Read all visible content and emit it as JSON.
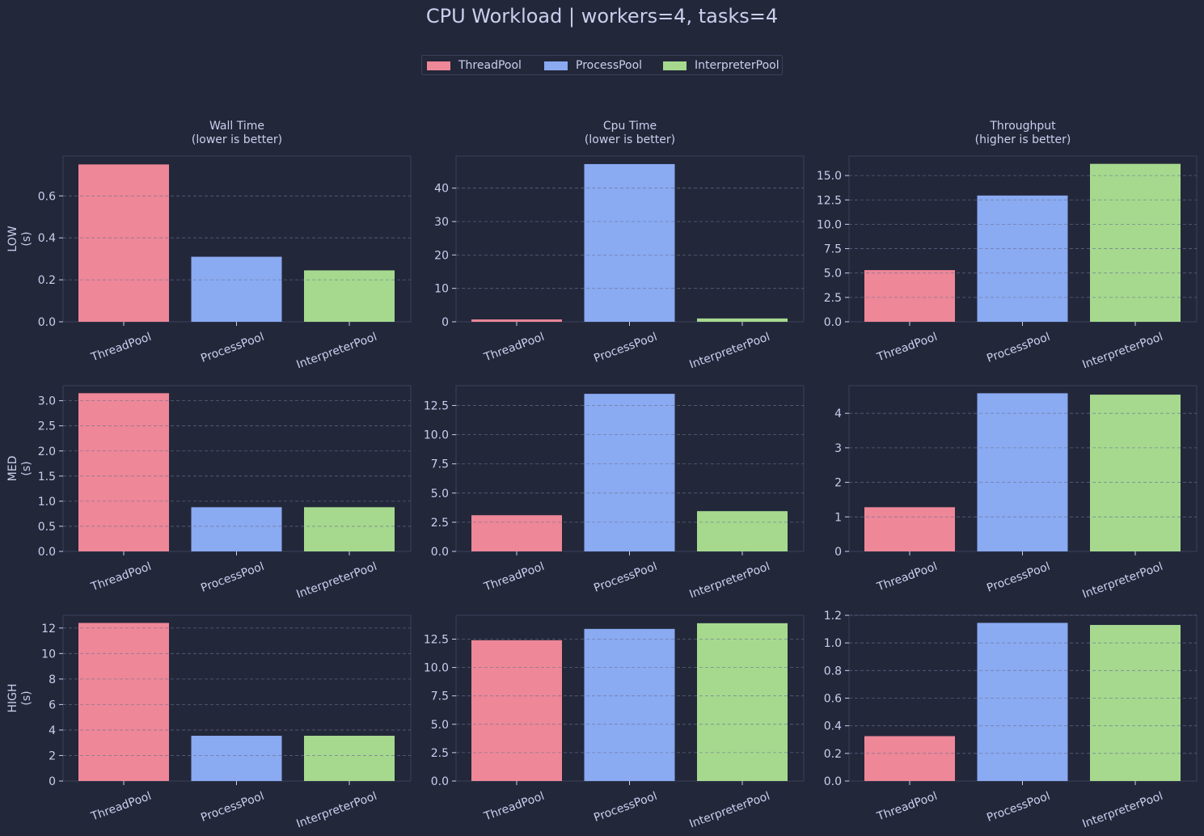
{
  "title": "CPU Workload | workers=4, tasks=4",
  "colors": {
    "background": "#23273a",
    "text": "#c9d0ee",
    "axis_frame": "#3a4058",
    "grid": "#6b7290"
  },
  "legend": [
    {
      "label": "ThreadPool",
      "color": "#ee8798"
    },
    {
      "label": "ProcessPool",
      "color": "#8aaaf2"
    },
    {
      "label": "InterpreterPool",
      "color": "#a6d98e"
    }
  ],
  "columns": [
    {
      "title": "Wall Time",
      "subtitle": "(lower is better)"
    },
    {
      "title": "Cpu Time",
      "subtitle": "(lower is better)"
    },
    {
      "title": "Throughput",
      "subtitle": "(higher is better)"
    }
  ],
  "rows": [
    {
      "label": "LOW",
      "unit": "(s)"
    },
    {
      "label": "MED",
      "unit": "(s)"
    },
    {
      "label": "HIGH",
      "unit": "(s)"
    }
  ],
  "chart_data": [
    {
      "type": "bar",
      "row": "LOW",
      "column": "Wall Time",
      "categories": [
        "ThreadPool",
        "ProcessPool",
        "InterpreterPool"
      ],
      "values": [
        0.75,
        0.31,
        0.245
      ],
      "ylim": [
        0,
        0.79
      ],
      "yticks": [
        0.0,
        0.2,
        0.4,
        0.6
      ],
      "tick_labels": [
        "0.0",
        "0.2",
        "0.4",
        "0.6"
      ],
      "grid": true
    },
    {
      "type": "bar",
      "row": "LOW",
      "column": "Cpu Time",
      "categories": [
        "ThreadPool",
        "ProcessPool",
        "InterpreterPool"
      ],
      "values": [
        0.7,
        47.2,
        1.0
      ],
      "ylim": [
        0,
        49.6
      ],
      "yticks": [
        0,
        10,
        20,
        30,
        40
      ],
      "tick_labels": [
        "0",
        "10",
        "20",
        "30",
        "40"
      ],
      "grid": true
    },
    {
      "type": "bar",
      "row": "LOW",
      "column": "Throughput",
      "categories": [
        "ThreadPool",
        "ProcessPool",
        "InterpreterPool"
      ],
      "values": [
        5.3,
        12.95,
        16.2
      ],
      "ylim": [
        0,
        17.0
      ],
      "yticks": [
        0.0,
        2.5,
        5.0,
        7.5,
        10.0,
        12.5,
        15.0
      ],
      "tick_labels": [
        "0.0",
        "2.5",
        "5.0",
        "7.5",
        "10.0",
        "12.5",
        "15.0"
      ],
      "grid": true
    },
    {
      "type": "bar",
      "row": "MED",
      "column": "Wall Time",
      "categories": [
        "ThreadPool",
        "ProcessPool",
        "InterpreterPool"
      ],
      "values": [
        3.15,
        0.88,
        0.88
      ],
      "ylim": [
        0,
        3.3
      ],
      "yticks": [
        0.0,
        0.5,
        1.0,
        1.5,
        2.0,
        2.5,
        3.0
      ],
      "tick_labels": [
        "0.0",
        "0.5",
        "1.0",
        "1.5",
        "2.0",
        "2.5",
        "3.0"
      ],
      "grid": true
    },
    {
      "type": "bar",
      "row": "MED",
      "column": "Cpu Time",
      "categories": [
        "ThreadPool",
        "ProcessPool",
        "InterpreterPool"
      ],
      "values": [
        3.1,
        13.5,
        3.45
      ],
      "ylim": [
        0,
        14.2
      ],
      "yticks": [
        0.0,
        2.5,
        5.0,
        7.5,
        10.0,
        12.5
      ],
      "tick_labels": [
        "0.0",
        "2.5",
        "5.0",
        "7.5",
        "10.0",
        "12.5"
      ],
      "grid": true
    },
    {
      "type": "bar",
      "row": "MED",
      "column": "Throughput",
      "categories": [
        "ThreadPool",
        "ProcessPool",
        "InterpreterPool"
      ],
      "values": [
        1.28,
        4.58,
        4.54
      ],
      "ylim": [
        0,
        4.8
      ],
      "yticks": [
        0,
        1,
        2,
        3,
        4
      ],
      "tick_labels": [
        "0",
        "1",
        "2",
        "3",
        "4"
      ],
      "grid": true
    },
    {
      "type": "bar",
      "row": "HIGH",
      "column": "Wall Time",
      "categories": [
        "ThreadPool",
        "ProcessPool",
        "InterpreterPool"
      ],
      "values": [
        12.4,
        3.55,
        3.55
      ],
      "ylim": [
        0,
        13.0
      ],
      "yticks": [
        0,
        2,
        4,
        6,
        8,
        10,
        12
      ],
      "tick_labels": [
        "0",
        "2",
        "4",
        "6",
        "8",
        "10",
        "12"
      ],
      "grid": true
    },
    {
      "type": "bar",
      "row": "HIGH",
      "column": "Cpu Time",
      "categories": [
        "ThreadPool",
        "ProcessPool",
        "InterpreterPool"
      ],
      "values": [
        12.4,
        13.4,
        13.9
      ],
      "ylim": [
        0,
        14.6
      ],
      "yticks": [
        0.0,
        2.5,
        5.0,
        7.5,
        10.0,
        12.5
      ],
      "tick_labels": [
        "0.0",
        "2.5",
        "5.0",
        "7.5",
        "10.0",
        "12.5"
      ],
      "grid": true
    },
    {
      "type": "bar",
      "row": "HIGH",
      "column": "Throughput",
      "categories": [
        "ThreadPool",
        "ProcessPool",
        "InterpreterPool"
      ],
      "values": [
        0.325,
        1.145,
        1.13
      ],
      "ylim": [
        0,
        1.2
      ],
      "yticks": [
        0.0,
        0.2,
        0.4,
        0.6,
        0.8,
        1.0,
        1.2
      ],
      "tick_labels": [
        "0.0",
        "0.2",
        "0.4",
        "0.6",
        "0.8",
        "1.0",
        "1.2"
      ],
      "grid": true
    }
  ]
}
